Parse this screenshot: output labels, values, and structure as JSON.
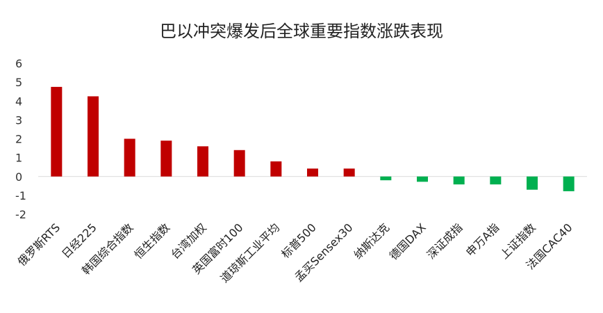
{
  "chart_data": {
    "type": "bar",
    "title": "巴以冲突爆发后全球重要指数涨跌表现",
    "xlabel": "",
    "ylabel": "",
    "ylim": [
      -2,
      6
    ],
    "yticks": [
      6,
      5,
      4,
      3,
      2,
      1,
      0,
      -1,
      -2
    ],
    "grid": false,
    "legend": "none",
    "colors": {
      "positive": "#C00000",
      "negative": "#00B050",
      "axis": "#D9D9D9"
    },
    "categories": [
      "俄罗斯RTS",
      "日经225",
      "韩国综合指数",
      "恒生指数",
      "台湾加权",
      "英国富时100",
      "道琼斯工业平均",
      "标普500",
      "孟买Sensex30",
      "纳斯达克",
      "德国DAX",
      "深证成指",
      "申万A指",
      "上证指数",
      "法国CAC40"
    ],
    "values": [
      4.75,
      4.25,
      2.0,
      1.9,
      1.6,
      1.4,
      0.8,
      0.42,
      0.42,
      -0.2,
      -0.28,
      -0.42,
      -0.42,
      -0.7,
      -0.78
    ]
  }
}
